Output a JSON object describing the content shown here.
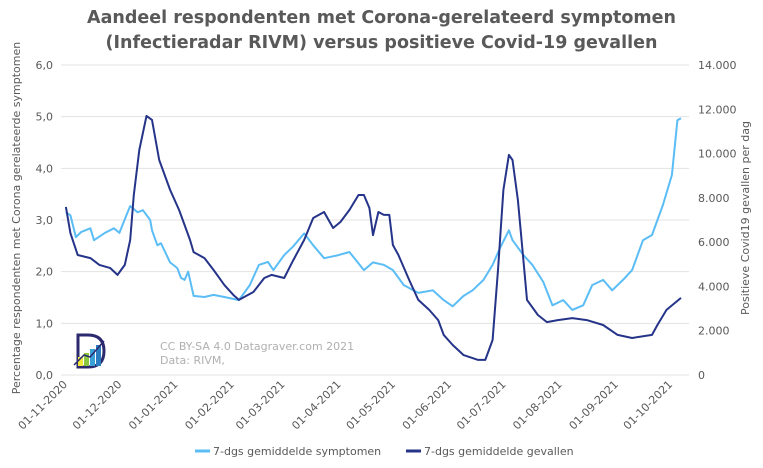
{
  "chart_data": {
    "type": "line",
    "title_line1": "Aandeel respondenten met Corona-gerelateerd symptomen",
    "title_line2": "(Infectieradar RIVM) versus positieve Covid-19 gevallen",
    "ylabel": "Percentage respondenten met Corona gerelateerde symptomen",
    "y2label": "Positieve Covid19 gevallen per dag",
    "ylim": [
      0,
      6
    ],
    "y2lim": [
      0,
      14000
    ],
    "y_ticks": [
      "0,0",
      "1,0",
      "2,0",
      "3,0",
      "4,0",
      "5,0",
      "6,0"
    ],
    "y2_ticks": [
      "0",
      "2.000",
      "4.000",
      "6.000",
      "8.000",
      "10.000",
      "12.000",
      "14.000"
    ],
    "x_start": "01-11-2020",
    "x_unit": "days since 01-11-2020",
    "x_ticks": [
      {
        "label": "01-11-2020",
        "day": 0
      },
      {
        "label": "01-12-2020",
        "day": 30
      },
      {
        "label": "01-01-2021",
        "day": 61
      },
      {
        "label": "01-02-2021",
        "day": 92
      },
      {
        "label": "01-03-2021",
        "day": 120
      },
      {
        "label": "01-04-2021",
        "day": 151
      },
      {
        "label": "01-05-2021",
        "day": 181
      },
      {
        "label": "01-06-2021",
        "day": 212
      },
      {
        "label": "01-07-2021",
        "day": 242
      },
      {
        "label": "01-08-2021",
        "day": 273
      },
      {
        "label": "01-09-2021",
        "day": 304
      },
      {
        "label": "01-10-2021",
        "day": 334
      }
    ],
    "xlim": [
      0,
      340
    ],
    "grid": true,
    "legend_position": "bottom",
    "series": [
      {
        "name": "7-dgs gemiddelde symptomen",
        "axis": "left",
        "color": "#5bbdf5",
        "points": [
          [
            0.5,
            3.15
          ],
          [
            3,
            3.09
          ],
          [
            6,
            2.67
          ],
          [
            9,
            2.77
          ],
          [
            14,
            2.84
          ],
          [
            16,
            2.61
          ],
          [
            22,
            2.75
          ],
          [
            27,
            2.84
          ],
          [
            30,
            2.75
          ],
          [
            34,
            3.1
          ],
          [
            36,
            3.27
          ],
          [
            40,
            3.15
          ],
          [
            43,
            3.19
          ],
          [
            47,
            3.0
          ],
          [
            48,
            2.8
          ],
          [
            51,
            2.51
          ],
          [
            53,
            2.55
          ],
          [
            58,
            2.18
          ],
          [
            62,
            2.07
          ],
          [
            64,
            1.88
          ],
          [
            66,
            1.84
          ],
          [
            68,
            2.0
          ],
          [
            71,
            1.53
          ],
          [
            77,
            1.51
          ],
          [
            82,
            1.55
          ],
          [
            88,
            1.51
          ],
          [
            96,
            1.45
          ],
          [
            102,
            1.74
          ],
          [
            107,
            2.13
          ],
          [
            112,
            2.19
          ],
          [
            115,
            2.03
          ],
          [
            121,
            2.32
          ],
          [
            126,
            2.49
          ],
          [
            132,
            2.74
          ],
          [
            137,
            2.51
          ],
          [
            143,
            2.26
          ],
          [
            151,
            2.32
          ],
          [
            157,
            2.38
          ],
          [
            165,
            2.03
          ],
          [
            170,
            2.18
          ],
          [
            176,
            2.13
          ],
          [
            181,
            2.03
          ],
          [
            187,
            1.74
          ],
          [
            195,
            1.59
          ],
          [
            203,
            1.64
          ],
          [
            209,
            1.45
          ],
          [
            214,
            1.33
          ],
          [
            220,
            1.53
          ],
          [
            225,
            1.64
          ],
          [
            231,
            1.84
          ],
          [
            236,
            2.13
          ],
          [
            240,
            2.45
          ],
          [
            245,
            2.8
          ],
          [
            247,
            2.61
          ],
          [
            253,
            2.32
          ],
          [
            258,
            2.13
          ],
          [
            264,
            1.8
          ],
          [
            269,
            1.35
          ],
          [
            275,
            1.45
          ],
          [
            280,
            1.26
          ],
          [
            286,
            1.35
          ],
          [
            291,
            1.74
          ],
          [
            297,
            1.84
          ],
          [
            302,
            1.64
          ],
          [
            308,
            1.84
          ],
          [
            313,
            2.03
          ],
          [
            319,
            2.61
          ],
          [
            324,
            2.71
          ],
          [
            330,
            3.29
          ],
          [
            335,
            3.87
          ],
          [
            338,
            4.93
          ],
          [
            340,
            4.97
          ]
        ]
      },
      {
        "name": "7-dgs gemiddelde gevallen",
        "axis": "right",
        "color": "#253489",
        "points": [
          [
            0.5,
            7590
          ],
          [
            3,
            6410
          ],
          [
            7,
            5420
          ],
          [
            14,
            5280
          ],
          [
            19,
            4970
          ],
          [
            25,
            4830
          ],
          [
            29,
            4520
          ],
          [
            33,
            4970
          ],
          [
            36,
            6100
          ],
          [
            38,
            8130
          ],
          [
            41,
            10160
          ],
          [
            45,
            11700
          ],
          [
            48,
            11520
          ],
          [
            52,
            9710
          ],
          [
            58,
            8360
          ],
          [
            63,
            7450
          ],
          [
            69,
            6100
          ],
          [
            71,
            5550
          ],
          [
            77,
            5280
          ],
          [
            82,
            4740
          ],
          [
            88,
            4060
          ],
          [
            93,
            3610
          ],
          [
            96,
            3390
          ],
          [
            104,
            3750
          ],
          [
            110,
            4380
          ],
          [
            114,
            4520
          ],
          [
            121,
            4380
          ],
          [
            126,
            5190
          ],
          [
            132,
            6100
          ],
          [
            137,
            7090
          ],
          [
            143,
            7360
          ],
          [
            148,
            6640
          ],
          [
            152,
            6910
          ],
          [
            157,
            7450
          ],
          [
            162,
            8130
          ],
          [
            165,
            8130
          ],
          [
            168,
            7540
          ],
          [
            170,
            6320
          ],
          [
            173,
            7360
          ],
          [
            176,
            7230
          ],
          [
            179,
            7230
          ],
          [
            181,
            5870
          ],
          [
            184,
            5420
          ],
          [
            190,
            4290
          ],
          [
            195,
            3390
          ],
          [
            201,
            2940
          ],
          [
            206,
            2480
          ],
          [
            209,
            1810
          ],
          [
            214,
            1355
          ],
          [
            220,
            900
          ],
          [
            228,
            680
          ],
          [
            232,
            680
          ],
          [
            236,
            1580
          ],
          [
            239,
            4740
          ],
          [
            242,
            8360
          ],
          [
            245,
            9940
          ],
          [
            247,
            9710
          ],
          [
            250,
            7900
          ],
          [
            253,
            5190
          ],
          [
            255,
            3390
          ],
          [
            261,
            2710
          ],
          [
            266,
            2390
          ],
          [
            272,
            2480
          ],
          [
            280,
            2570
          ],
          [
            288,
            2480
          ],
          [
            297,
            2260
          ],
          [
            305,
            1810
          ],
          [
            313,
            1670
          ],
          [
            324,
            1810
          ],
          [
            327,
            2260
          ],
          [
            332,
            2940
          ],
          [
            340,
            3480
          ]
        ]
      }
    ],
    "annotations": [
      "CC BY-SA 4.0 Datagraver.com 2021",
      "Data: RIVM,"
    ]
  }
}
